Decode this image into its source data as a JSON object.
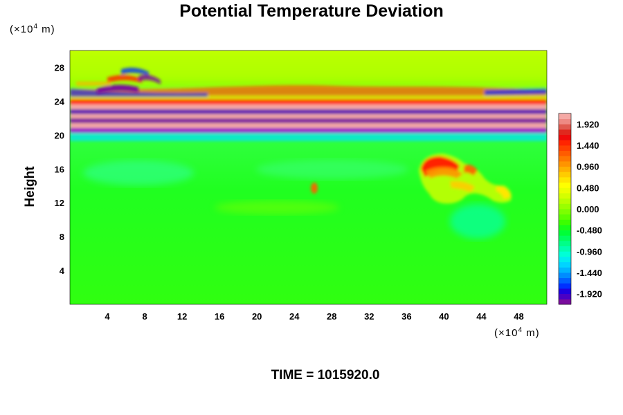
{
  "chart_data": {
    "type": "heatmap",
    "title": "Potential Temperature Deviation",
    "ylabel": "Height",
    "y_unit_prefix": "(×10",
    "y_unit_exp": "4",
    "y_unit_suffix": " m)",
    "x_unit_prefix": "(×10",
    "x_unit_exp": "4",
    "x_unit_suffix": " m)",
    "footer": "TIME = 1015920.0",
    "xlim": [
      0,
      51
    ],
    "ylim": [
      0,
      30
    ],
    "x_ticks": [
      "4",
      "8",
      "12",
      "16",
      "20",
      "24",
      "28",
      "32",
      "36",
      "40",
      "44",
      "48"
    ],
    "y_ticks": [
      "4",
      "8",
      "12",
      "16",
      "20",
      "24",
      "28"
    ],
    "colorbar": {
      "min": -2.16,
      "max": 2.16,
      "levels": 36,
      "labels": [
        "1.920",
        "1.440",
        "0.960",
        "0.480",
        "0.000",
        "-0.480",
        "-0.960",
        "-1.440",
        "-1.920"
      ],
      "colors": [
        "#7a0d9e",
        "#4a00c4",
        "#1f00e0",
        "#0030ff",
        "#0060ff",
        "#008cff",
        "#00b4ff",
        "#00d4ff",
        "#00ecf0",
        "#00ffd6",
        "#00ffb0",
        "#00ff88",
        "#00ff60",
        "#00ff38",
        "#18ff18",
        "#3cff00",
        "#5cff00",
        "#7cff00",
        "#9aff00",
        "#b8ff00",
        "#d4ff00",
        "#ecff00",
        "#ffff00",
        "#ffe600",
        "#ffcc00",
        "#ffb000",
        "#ff9400",
        "#ff7800",
        "#ff5c00",
        "#ff4000",
        "#ff2400",
        "#f00a0a",
        "#e0281e",
        "#e05a50",
        "#ee8a84",
        "#f5a9a5"
      ]
    },
    "features": [
      {
        "name": "stratospheric band",
        "x": [
          0,
          51
        ],
        "y": [
          19,
          26
        ],
        "values": "alternating -1.9 to 1.9"
      },
      {
        "name": "wave packet",
        "x": [
          3,
          12
        ],
        "y": [
          23,
          27
        ],
        "values": "-1.9 to 1.9"
      },
      {
        "name": "warm anomaly",
        "x": [
          37,
          42
        ],
        "y": [
          15,
          17
        ],
        "values": "up to 1.9"
      },
      {
        "name": "background",
        "x": [
          0,
          51
        ],
        "y": [
          0,
          19
        ],
        "values": "about 0.0"
      }
    ]
  }
}
